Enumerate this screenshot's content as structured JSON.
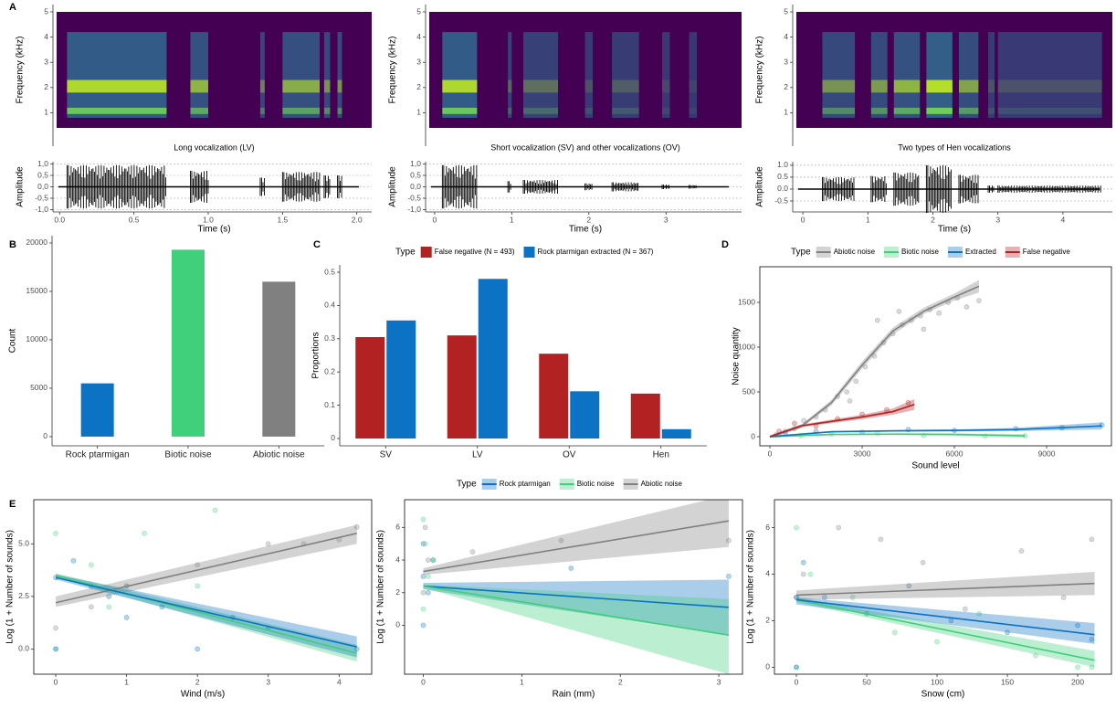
{
  "chart_data": [
    {
      "type": "waveform",
      "panel": "A",
      "title": "Long vocalization (LV)",
      "freq_label": "Frequency (kHz)",
      "freq_lim": [
        0.4,
        5
      ],
      "freq_ticks": [
        1,
        2,
        3,
        4,
        5
      ],
      "ylabel": "Amplitude",
      "ylim": [
        -1.1,
        1.1
      ],
      "yticks": [
        {
          "value": 1,
          "label": "1,0"
        },
        {
          "value": 0.5,
          "label": "0,5"
        },
        {
          "value": 0,
          "label": "0,0"
        },
        {
          "value": -0.5,
          "label": "-0,5"
        },
        {
          "value": -1,
          "label": "-1,0"
        }
      ],
      "xlabel": "Time (s)",
      "xlim": [
        -0.02,
        2.1
      ],
      "xticks": [
        {
          "value": 0,
          "label": "0.0"
        },
        0.5,
        {
          "value": 1,
          "label": "1.0"
        },
        1.5,
        {
          "value": 2,
          "label": "2.0"
        }
      ],
      "bursts": [
        [
          0.05,
          0.72,
          0.95
        ],
        [
          0.88,
          1.0,
          0.7
        ],
        [
          1.35,
          1.38,
          0.4
        ],
        [
          1.5,
          1.75,
          0.65
        ],
        [
          1.78,
          1.82,
          0.5
        ],
        [
          1.87,
          1.9,
          0.5
        ]
      ]
    },
    {
      "type": "waveform",
      "title": "Short vocalization (SV) and other vocalizations (OV)",
      "freq_label": "Frequency (kHz)",
      "freq_lim": [
        0.4,
        5
      ],
      "freq_ticks": [
        1,
        2,
        3,
        4,
        5
      ],
      "ylabel": "Amplitude",
      "ylim": [
        -1.1,
        1.1
      ],
      "yticks": [
        {
          "value": 1,
          "label": "1,0"
        },
        {
          "value": 0.5,
          "label": "0,5"
        },
        {
          "value": 0,
          "label": "0,0"
        },
        {
          "value": -0.5,
          "label": "-0,5"
        },
        {
          "value": -1,
          "label": "-1,0"
        }
      ],
      "xlabel": "Time (s)",
      "xlim": [
        -0.07,
        3.98
      ],
      "xticks": [
        0,
        1,
        2,
        3
      ],
      "bursts": [
        [
          0.1,
          0.55,
          0.95
        ],
        [
          0.95,
          1.0,
          0.25
        ],
        [
          1.15,
          1.6,
          0.3
        ],
        [
          1.95,
          2.05,
          0.15
        ],
        [
          2.3,
          2.65,
          0.2
        ],
        [
          2.95,
          3.05,
          0.1
        ],
        [
          3.3,
          3.4,
          0.08
        ]
      ]
    },
    {
      "type": "waveform",
      "title": "Two types of Hen vocalizations",
      "freq_label": "Frequency (kHz)",
      "freq_lim": [
        0.4,
        5
      ],
      "freq_ticks": [
        1,
        2,
        3,
        4,
        5
      ],
      "ylabel": "Amplitude",
      "ylim": [
        -0.96,
        1.15
      ],
      "yticks": [
        {
          "value": 1,
          "label": "1.0"
        },
        0.5,
        {
          "value": 0,
          "label": "0.0"
        },
        -0.5
      ],
      "xlabel": "Time (s)",
      "xlim": [
        -0.1,
        4.76
      ],
      "xticks": [
        0,
        1,
        2,
        3,
        4
      ],
      "bursts": [
        [
          0.3,
          0.8,
          0.5
        ],
        [
          1.05,
          1.3,
          0.55
        ],
        [
          1.4,
          1.8,
          0.7
        ],
        [
          1.9,
          2.3,
          1.0
        ],
        [
          2.4,
          2.7,
          0.6
        ],
        [
          2.85,
          2.95,
          0.15
        ],
        [
          3.0,
          4.6,
          0.15
        ]
      ]
    },
    {
      "type": "bar",
      "panel": "B",
      "ylabel": "Count",
      "categories": [
        "Rock ptarmigan",
        "Biotic noise",
        "Abiotic noise"
      ],
      "values": [
        5500,
        19300,
        16000
      ],
      "colors": [
        "#0b72c4",
        "#40cf7a",
        "#808080"
      ],
      "ylim": [
        -950,
        20750
      ],
      "yticks": [
        0,
        5000,
        10000,
        15000,
        20000
      ]
    },
    {
      "type": "grouped_bar",
      "panel": "C",
      "legend_title": "Type",
      "ylabel": "Proportions",
      "categories": [
        "SV",
        "LV",
        "OV",
        "Hen"
      ],
      "series": [
        {
          "name": "False negative (N = 493)",
          "color": "#b22222",
          "values": [
            0.305,
            0.31,
            0.255,
            0.135
          ]
        },
        {
          "name": "Rock ptarmigan extracted (N = 367)",
          "color": "#0b72c4",
          "values": [
            0.355,
            0.48,
            0.142,
            0.028
          ]
        }
      ],
      "ylim": [
        -0.022,
        0.522
      ],
      "yticks": [
        0,
        0.1,
        0.2,
        0.3,
        0.4,
        0.5
      ]
    },
    {
      "type": "regression",
      "panel": "D",
      "legend_title": "Type",
      "xlabel": "Sound level",
      "ylabel": "Noise quantity",
      "xlim": [
        -327,
        11108
      ],
      "ylim": [
        -102,
        1898
      ],
      "xticks": [
        0,
        3000,
        6000,
        9000
      ],
      "yticks": [
        0,
        500,
        1000,
        1500
      ],
      "series": [
        {
          "name": "Abiotic noise",
          "color": "#808080",
          "x": [
            0,
            1000,
            2000,
            3000,
            4000,
            5000,
            6000,
            6800
          ],
          "values": [
            0,
            110,
            380,
            800,
            1180,
            1400,
            1560,
            1680
          ],
          "lower": [
            -10,
            90,
            350,
            760,
            1140,
            1370,
            1520,
            1610
          ],
          "upper": [
            10,
            130,
            410,
            840,
            1220,
            1440,
            1600,
            1750
          ],
          "points_x": [
            200,
            500,
            800,
            1100,
            1500,
            1800,
            2200,
            2500,
            2800,
            3100,
            3400,
            3700,
            4000,
            4300,
            4600,
            4900,
            5200,
            5500,
            5800,
            6100,
            6400,
            6800,
            3500,
            4200,
            5000,
            2600
          ],
          "points_y": [
            20,
            60,
            90,
            180,
            220,
            300,
            450,
            500,
            620,
            780,
            900,
            1050,
            1150,
            1250,
            1300,
            1350,
            1420,
            1380,
            1500,
            1550,
            1450,
            1520,
            1300,
            1400,
            1200,
            400
          ]
        },
        {
          "name": "Biotic noise",
          "color": "#40cf7a",
          "x": [
            0,
            2000,
            4000,
            6000,
            8300
          ],
          "values": [
            0,
            25,
            28,
            25,
            10
          ],
          "lower": [
            -10,
            15,
            18,
            12,
            -10
          ],
          "upper": [
            10,
            35,
            38,
            38,
            30
          ],
          "points_x": [
            300,
            1000,
            2000,
            3500,
            5000,
            7000,
            8300
          ],
          "points_y": [
            20,
            10,
            30,
            40,
            15,
            5,
            10
          ]
        },
        {
          "name": "Extracted",
          "color": "#0b72c4",
          "x": [
            0,
            2000,
            4000,
            6000,
            8000,
            10800
          ],
          "values": [
            0,
            55,
            65,
            70,
            80,
            120
          ],
          "lower": [
            -10,
            45,
            55,
            58,
            62,
            80
          ],
          "upper": [
            10,
            65,
            75,
            82,
            98,
            160
          ],
          "points_x": [
            500,
            1500,
            3000,
            4500,
            6000,
            8000,
            9500,
            10800
          ],
          "points_y": [
            40,
            60,
            50,
            80,
            70,
            90,
            100,
            130
          ]
        },
        {
          "name": "False negative",
          "color": "#b22222",
          "x": [
            0,
            1000,
            2000,
            3000,
            4000,
            4700
          ],
          "values": [
            0,
            120,
            170,
            220,
            280,
            360
          ],
          "lower": [
            -15,
            105,
            150,
            195,
            245,
            300
          ],
          "upper": [
            15,
            135,
            190,
            245,
            315,
            420
          ],
          "points_x": [
            300,
            800,
            1500,
            2200,
            3000,
            3800,
            4500
          ],
          "points_y": [
            60,
            150,
            120,
            200,
            250,
            300,
            380
          ]
        }
      ]
    },
    {
      "type": "regression",
      "panel": "E",
      "xlabel": "Wind (m/s)",
      "ylabel": "Log (1 + Number of sounds)",
      "xlim": [
        -0.31,
        4.46
      ],
      "ylim": [
        -1.2,
        7.1
      ],
      "xticks": [
        0,
        1,
        2,
        3,
        4
      ],
      "yticks": [
        {
          "value": 0,
          "label": "0.0"
        },
        2.5,
        {
          "value": 5,
          "label": "5.0"
        }
      ],
      "series": [
        {
          "color": "#808080",
          "x": [
            0,
            4.25
          ],
          "values": [
            2.2,
            5.5
          ],
          "lower": [
            2.0,
            5.0
          ],
          "upper": [
            2.5,
            5.9
          ],
          "points_x": [
            0,
            0.5,
            1,
            2,
            3,
            4,
            4.25,
            3.5
          ],
          "points_y": [
            1,
            2,
            3,
            4,
            5,
            5.2,
            5.8,
            5
          ]
        },
        {
          "color": "#40cf7a",
          "x": [
            0,
            4.25
          ],
          "values": [
            3.5,
            -0.2
          ],
          "lower": [
            3.4,
            -0.6
          ],
          "upper": [
            3.6,
            0.2
          ],
          "points_x": [
            0,
            0,
            0.5,
            1,
            1.25,
            2,
            2.25,
            0.75
          ],
          "points_y": [
            5.5,
            0,
            4,
            3,
            5.5,
            3,
            6.6,
            2
          ]
        },
        {
          "color": "#0b72c4",
          "x": [
            0,
            4.25
          ],
          "values": [
            3.4,
            0.1
          ],
          "lower": [
            3.3,
            -0.4
          ],
          "upper": [
            3.55,
            0.6
          ],
          "points_x": [
            0,
            0,
            0.25,
            0.5,
            0.75,
            1,
            1.5,
            2,
            2.5,
            3,
            4.25
          ],
          "points_y": [
            3.4,
            0,
            4.2,
            3,
            2.5,
            1.5,
            2,
            0,
            1.5,
            1,
            0
          ]
        }
      ]
    },
    {
      "type": "regression",
      "legend_title": "Type",
      "xlabel": "Rain (mm)",
      "ylabel": "Log (1 + Number of sounds)",
      "xlim": [
        -0.19,
        3.24
      ],
      "ylim": [
        -3.0,
        7.7
      ],
      "xticks": [
        0,
        1,
        2,
        3
      ],
      "yticks": [
        0,
        2,
        4,
        6
      ],
      "series": [
        {
          "name": "Rock ptarmigan",
          "color": "#0b72c4",
          "x": [
            0,
            3.1
          ],
          "values": [
            2.4,
            1.1
          ],
          "lower": [
            2.2,
            -0.6
          ],
          "upper": [
            2.6,
            2.8
          ],
          "points_x": [
            0,
            0,
            0,
            0.05,
            0.1,
            1.5,
            3.1
          ],
          "points_y": [
            3,
            0,
            5,
            2,
            4,
            3.5,
            3
          ]
        },
        {
          "name": "Biotic noise",
          "color": "#40cf7a",
          "x": [
            0,
            3.1
          ],
          "values": [
            2.4,
            -0.6
          ],
          "lower": [
            2.3,
            -3.0
          ],
          "upper": [
            2.5,
            1.6
          ],
          "points_x": [
            0,
            0,
            0.02,
            0.05,
            0.1
          ],
          "points_y": [
            6.5,
            1,
            5,
            3,
            4
          ]
        },
        {
          "name": "Abiotic noise",
          "color": "#808080",
          "x": [
            0,
            3.1
          ],
          "values": [
            3.3,
            6.4
          ],
          "lower": [
            3.1,
            4.8
          ],
          "upper": [
            3.5,
            8.0
          ],
          "points_x": [
            0,
            0.02,
            0.05,
            1.4,
            3.1,
            0.5
          ],
          "points_y": [
            2,
            6,
            4,
            5.2,
            5.2,
            4.5
          ]
        }
      ]
    },
    {
      "type": "regression",
      "xlabel": "Snow (cm)",
      "ylabel": "Log (1 + Number of sounds)",
      "xlim": [
        -15.6,
        224
      ],
      "ylim": [
        -0.3,
        7.2
      ],
      "xticks": [
        0,
        50,
        100,
        150,
        200
      ],
      "yticks": [
        0,
        2,
        4,
        6
      ],
      "series": [
        {
          "color": "#808080",
          "x": [
            0,
            212
          ],
          "values": [
            3.1,
            3.6
          ],
          "lower": [
            2.9,
            3.1
          ],
          "upper": [
            3.3,
            4.1
          ],
          "points_x": [
            0,
            5,
            30,
            60,
            90,
            120,
            160,
            190,
            210
          ],
          "points_y": [
            3,
            4,
            6,
            5.5,
            4.5,
            2.5,
            5,
            3,
            5.5
          ]
        },
        {
          "color": "#40cf7a",
          "x": [
            0,
            212
          ],
          "values": [
            2.9,
            0.3
          ],
          "lower": [
            2.8,
            0.0
          ],
          "upper": [
            3.0,
            0.7
          ],
          "points_x": [
            0,
            0,
            10,
            40,
            70,
            100,
            130,
            170,
            200,
            210
          ],
          "points_y": [
            6,
            0,
            4,
            3,
            1.5,
            1.1,
            2.3,
            0.5,
            0,
            0
          ]
        },
        {
          "color": "#0b72c4",
          "x": [
            0,
            212
          ],
          "values": [
            2.9,
            1.4
          ],
          "lower": [
            2.7,
            1.0
          ],
          "upper": [
            3.0,
            1.9
          ],
          "points_x": [
            0,
            0,
            5,
            20,
            50,
            80,
            110,
            150,
            200,
            210
          ],
          "points_y": [
            3,
            0,
            4.5,
            3,
            2.3,
            3.5,
            2,
            1.5,
            1.8,
            1.2
          ]
        }
      ]
    }
  ]
}
